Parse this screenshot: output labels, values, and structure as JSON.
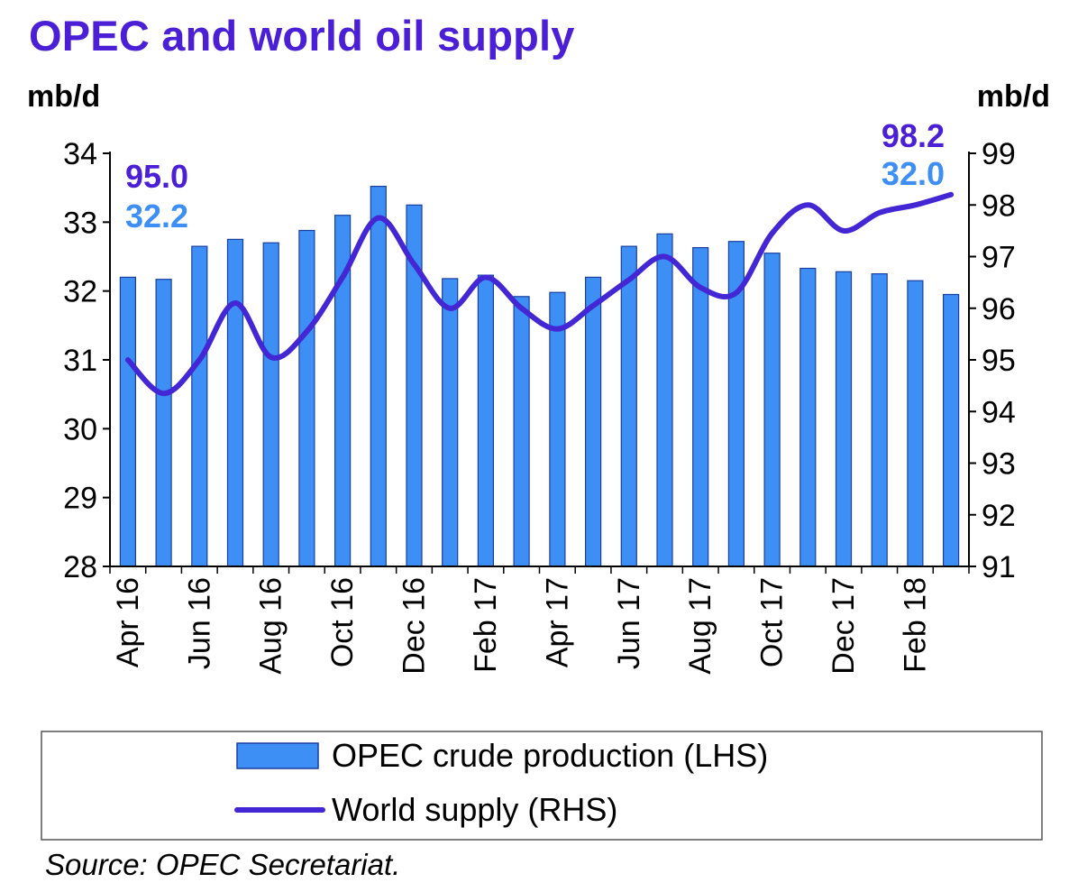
{
  "page": {
    "title": "OPEC and world oil supply",
    "source": "Source: OPEC Secretariat."
  },
  "colors": {
    "title": "#4a1fd6",
    "bar_fill": "#3d8ff5",
    "bar_stroke": "#1a3f9e",
    "line": "#4326d4",
    "annotation_world": "#4a1fd6",
    "annotation_opec": "#3d8ff5",
    "axis": "#000000"
  },
  "chart_data": {
    "type": "bar",
    "categories": [
      "Apr 16",
      "May 16",
      "Jun 16",
      "Jul 16",
      "Aug 16",
      "Sep 16",
      "Oct 16",
      "Nov 16",
      "Dec 16",
      "Jan 17",
      "Feb 17",
      "Mar 17",
      "Apr 17",
      "May 17",
      "Jun 17",
      "Jul 17",
      "Aug 17",
      "Sep 17",
      "Oct 17",
      "Nov 17",
      "Dec 17",
      "Jan 18",
      "Feb 18",
      "Mar 18"
    ],
    "tick_labels": [
      "Apr 16",
      "",
      "Jun 16",
      "",
      "Aug 16",
      "",
      "Oct 16",
      "",
      "Dec 16",
      "",
      "Feb 17",
      "",
      "Apr 17",
      "",
      "Jun 17",
      "",
      "Aug 17",
      "",
      "Oct 17",
      "",
      "Dec 17",
      "",
      "Feb 18",
      ""
    ],
    "series": [
      {
        "name": "OPEC crude production (LHS)",
        "type": "bar",
        "axis": "left",
        "values": [
          32.2,
          32.17,
          32.65,
          32.75,
          32.7,
          32.88,
          33.1,
          33.52,
          33.25,
          32.18,
          32.23,
          31.92,
          31.98,
          32.2,
          32.65,
          32.83,
          32.63,
          32.72,
          32.55,
          32.33,
          32.28,
          32.25,
          32.15,
          31.95
        ]
      },
      {
        "name": "World supply (RHS)",
        "type": "line",
        "axis": "right",
        "values": [
          95.0,
          94.35,
          95.0,
          96.1,
          95.05,
          95.55,
          96.6,
          97.75,
          96.85,
          96.0,
          96.6,
          96.0,
          95.6,
          96.05,
          96.55,
          97.0,
          96.4,
          96.3,
          97.45,
          98.0,
          97.5,
          97.85,
          98.0,
          98.2
        ]
      }
    ],
    "ylabel": "mb/d",
    "y2label": "mb/d",
    "ylim": [
      28,
      34
    ],
    "y2lim": [
      91,
      99
    ],
    "yticks": [
      28,
      29,
      30,
      31,
      32,
      33,
      34
    ],
    "y2ticks": [
      91,
      92,
      93,
      94,
      95,
      96,
      97,
      98,
      99
    ],
    "annotations": {
      "start_world": "95.0",
      "start_opec": "32.2",
      "end_world": "98.2",
      "end_opec": "32.0"
    },
    "legend": {
      "placement": "bottom",
      "items": [
        "OPEC crude production (LHS)",
        "World supply (RHS)"
      ]
    },
    "grid": false
  }
}
